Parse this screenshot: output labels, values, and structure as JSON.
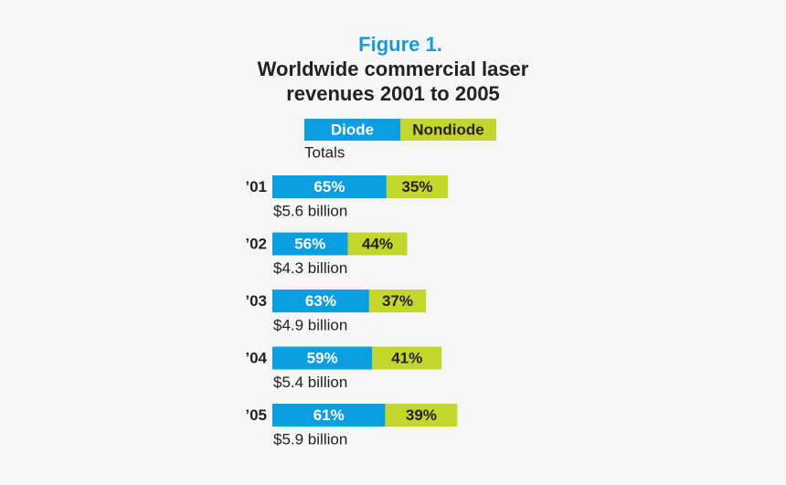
{
  "chart_data": {
    "type": "stacked-share-bar",
    "title": "Figure 1.",
    "subtitle": [
      "Worldwide commercial laser",
      "revenues 2001 to 2005"
    ],
    "categories": [
      "’01",
      "’02",
      "’03",
      "’04",
      "’05"
    ],
    "series": [
      {
        "name": "Diode",
        "color": "#0b9ee0",
        "values": [
          65,
          56,
          63,
          59,
          61
        ],
        "value_labels": [
          "65%",
          "56%",
          "63%",
          "59%",
          "61%"
        ]
      },
      {
        "name": "Nondiode",
        "color": "#c3d62b",
        "values": [
          35,
          44,
          37,
          41,
          39
        ],
        "value_labels": [
          "35%",
          "44%",
          "37%",
          "41%",
          "39%"
        ]
      }
    ],
    "totals": {
      "name": "Totals",
      "values": [
        5.6,
        4.3,
        4.9,
        5.4,
        5.9
      ],
      "value_labels": [
        "$5.6 billion",
        "$4.3 billion",
        "$4.9 billion",
        "$5.4 billion",
        "$5.9 billion"
      ]
    }
  }
}
